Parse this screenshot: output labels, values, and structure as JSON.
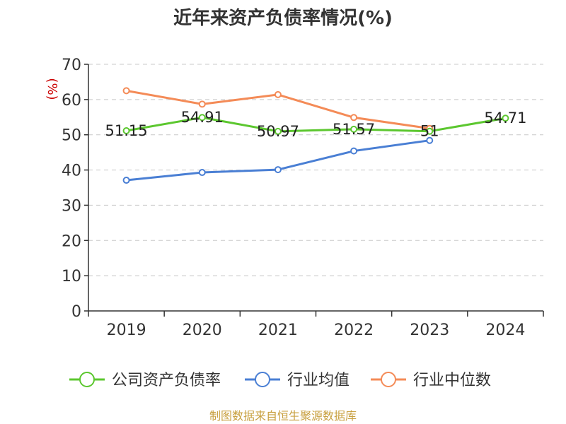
{
  "chart_data": {
    "type": "line",
    "title": "近年来资产负债率情况(%)",
    "ylabel": "(%)",
    "categories": [
      "2019",
      "2020",
      "2021",
      "2022",
      "2023",
      "2024"
    ],
    "ylim": [
      0,
      70
    ],
    "yticks": [
      0,
      10,
      20,
      30,
      40,
      50,
      60,
      70
    ],
    "grid": true,
    "legend_position": "bottom",
    "series": [
      {
        "name": "公司资产负债率",
        "color": "#5cc72f",
        "values": [
          51.15,
          54.91,
          50.97,
          51.57,
          51,
          54.71
        ],
        "labels": [
          "51.15",
          "54.91",
          "50.97",
          "51.57",
          "51",
          "54.71"
        ]
      },
      {
        "name": "行业均值",
        "color": "#4a7fd4",
        "values": [
          37.1,
          39.3,
          40.1,
          45.4,
          48.4,
          null
        ]
      },
      {
        "name": "行业中位数",
        "color": "#f48b57",
        "values": [
          62.5,
          58.7,
          61.4,
          54.9,
          51.8,
          null
        ]
      }
    ]
  },
  "source": "制图数据来自恒生聚源数据库"
}
